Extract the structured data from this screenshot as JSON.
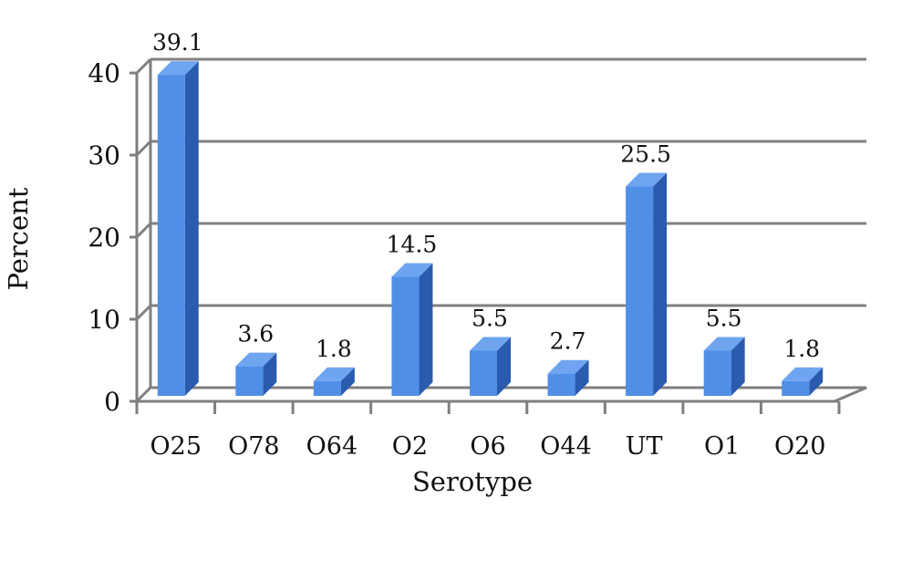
{
  "chart_data": {
    "type": "bar",
    "title": "",
    "xlabel": "Serotype",
    "ylabel": "Percent",
    "categories": [
      "O25",
      "O78",
      "O64",
      "O2",
      "O6",
      "O44",
      "UT",
      "O1",
      "O20"
    ],
    "values": [
      39.1,
      3.6,
      1.8,
      14.5,
      5.5,
      2.7,
      25.5,
      5.5,
      1.8
    ],
    "data_labels": [
      "39.1",
      "3.6",
      "1.8",
      "14.5",
      "5.5",
      "2.7",
      "25.5",
      "5.5",
      "1.8"
    ],
    "ylim": [
      0,
      40
    ],
    "yticks": [
      "0",
      "10",
      "20",
      "30",
      "40"
    ],
    "grid": true,
    "legend": "none",
    "style": "3d-column",
    "colors": {
      "bar_front": "#4F8FE8",
      "bar_side": "#2A5BAE",
      "bar_top": "#6FA5F0",
      "grid": "#7F7F7F"
    }
  }
}
